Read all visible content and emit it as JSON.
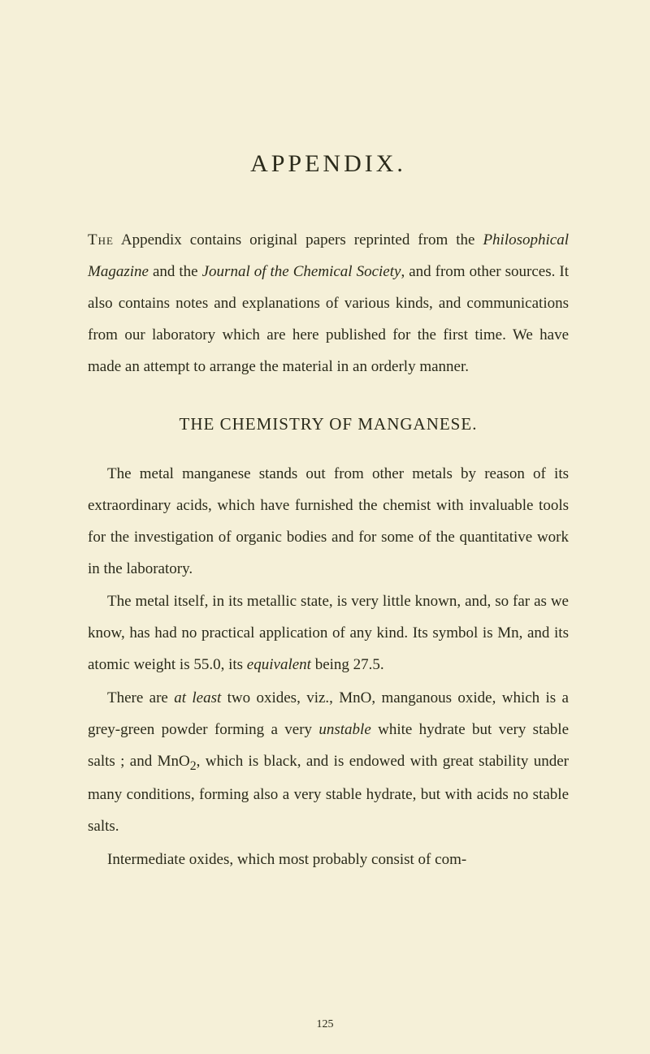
{
  "title": "APPENDIX.",
  "intro": {
    "first_word": "The",
    "rest": " Appendix contains original papers reprinted from the ",
    "italic1": "Philosophical Magazine",
    "mid1": " and the ",
    "italic2": "Journal of the Chemical Society",
    "rest2": ", and from other sources. It also contains notes and explanations of various kinds, and communications from our laboratory which are here published for the first time. We have made an attempt to arrange the material in an orderly manner."
  },
  "section_heading": "THE CHEMISTRY OF MANGANESE.",
  "para1": "The metal manganese stands out from other metals by reason of its extraordinary acids, which have furnished the chemist with invaluable tools for the investigation of organic bodies and for some of the quantitative work in the laboratory.",
  "para2": "The metal itself, in its metallic state, is very little known, and, so far as we know, has had no practical application of any kind. Its symbol is Mn, and its atomic weight is 55.0, its ",
  "para2_italic": "equivalent",
  "para2_rest": " being 27.5.",
  "para3_a": "There are ",
  "para3_italic1": "at least",
  "para3_b": " two oxides, viz., MnO, manganous oxide, which is a grey-green powder forming a very ",
  "para3_italic2": "unstable",
  "para3_c": " white hydrate but very stable salts ; and MnO",
  "para3_sub": "2",
  "para3_d": ", which is black, and is endowed with great stability under many conditions, forming also a very stable hydrate, but with acids no stable salts.",
  "para4": "Intermediate oxides, which most probably consist of com-",
  "page_number": "125"
}
